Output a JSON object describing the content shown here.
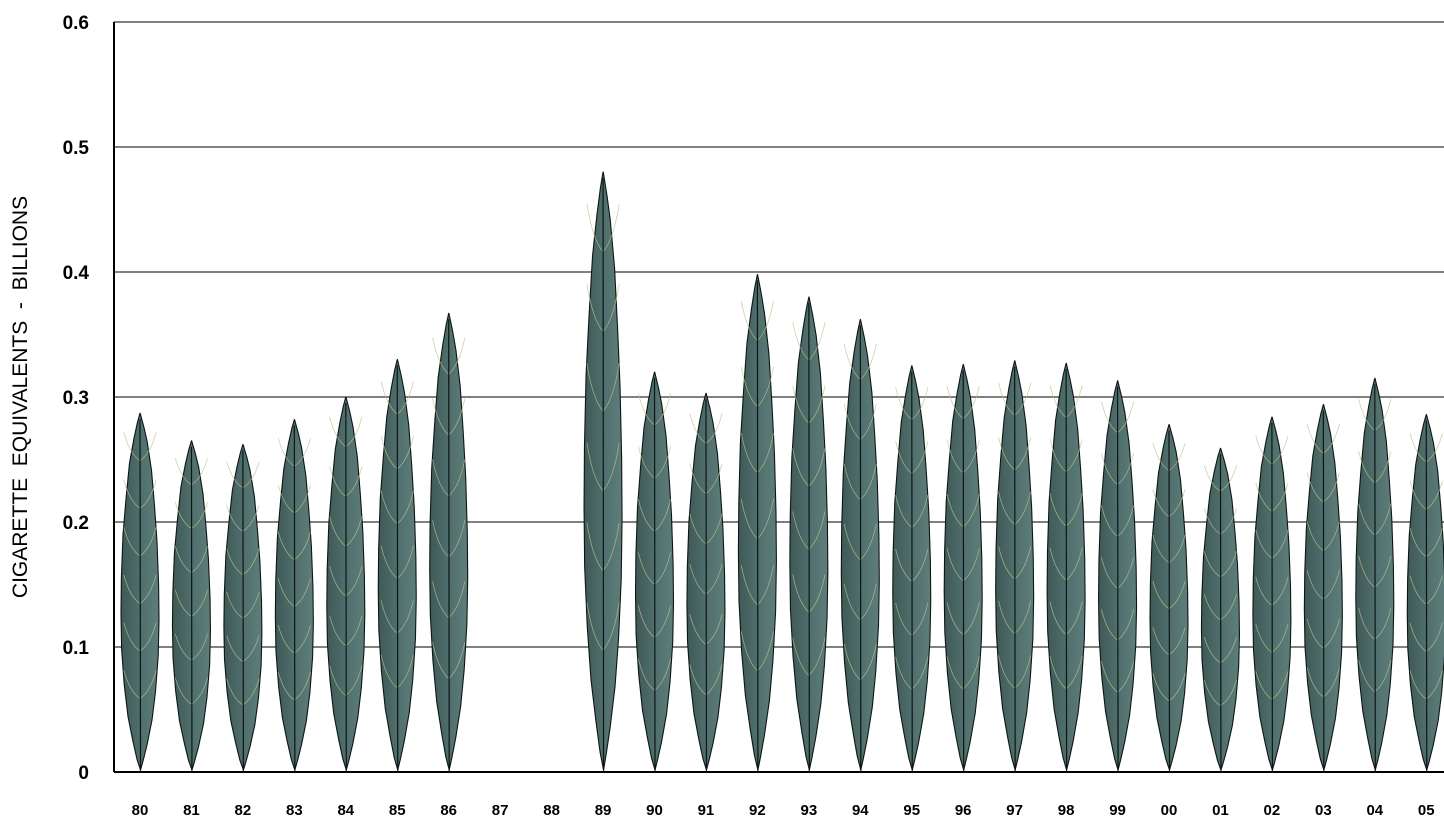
{
  "chart_data": {
    "type": "bar",
    "title": "",
    "xlabel": "",
    "ylabel": "CIGARETTE  EQUIVALENTS  -  BILLIONS",
    "ylim": [
      0,
      0.6
    ],
    "yticks": [
      "0",
      "0.1",
      "0.2",
      "0.3",
      "0.4",
      "0.5",
      "0.6"
    ],
    "grid": true,
    "legend": "none",
    "bar_style": "tobacco-leaf",
    "leaf_color": "#4d6a68",
    "vein_color": "#b9c48a",
    "categories": [
      "80",
      "81",
      "82",
      "83",
      "84",
      "85",
      "86",
      "87",
      "88",
      "89",
      "90",
      "91",
      "92",
      "93",
      "94",
      "95",
      "96",
      "97",
      "98",
      "99",
      "00",
      "01",
      "02",
      "03",
      "04",
      "05"
    ],
    "values": [
      0.287,
      0.265,
      0.262,
      0.282,
      0.3,
      0.33,
      0.367,
      null,
      null,
      0.48,
      0.32,
      0.303,
      0.398,
      0.38,
      0.362,
      0.325,
      0.326,
      0.329,
      0.327,
      0.313,
      0.278,
      0.259,
      0.284,
      0.294,
      0.315,
      0.286
    ]
  }
}
